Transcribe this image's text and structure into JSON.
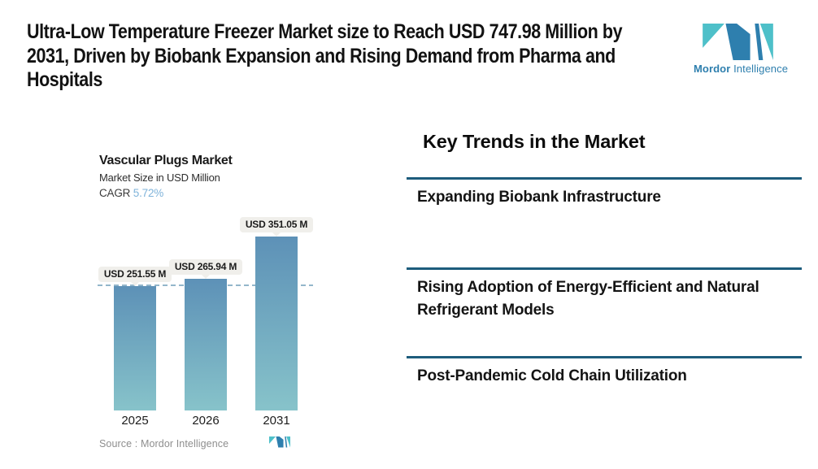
{
  "header": {
    "title": "Ultra-Low Temperature Freezer Market size to Reach USD 747.98 Million by 2031, Driven by Biobank Expansion and Rising Demand from Pharma and Hospitals",
    "logo": {
      "bold": "Mordor",
      "regular": "Intelligence"
    }
  },
  "chart": {
    "title": "Vascular Plugs Market",
    "subtitle": "Market Size in USD Million",
    "cagr_label": "CAGR",
    "cagr_value": "5.72%",
    "bars": [
      {
        "year": "2025",
        "label": "USD 251.55 M",
        "value": 251.55
      },
      {
        "year": "2026",
        "label": "USD 265.94 M",
        "value": 265.94
      },
      {
        "year": "2031",
        "label": "USD 351.05 M",
        "value": 351.05
      }
    ],
    "source_label": "Source :",
    "source_value": "Mordor Intelligence"
  },
  "chart_data": {
    "type": "bar",
    "categories": [
      "2025",
      "2026",
      "2031"
    ],
    "values": [
      251.55,
      265.94,
      351.05
    ],
    "value_labels": [
      "USD 251.55 M",
      "USD 265.94 M",
      "USD 351.05 M"
    ],
    "title": "Vascular Plugs Market",
    "subtitle": "Market Size in USD Million",
    "cagr": "5.72%",
    "xlabel": "",
    "ylabel": "Market Size in USD Million",
    "ylim": [
      0,
      360
    ],
    "grid": false,
    "legend": "none",
    "reference_line": {
      "style": "dashed",
      "at_value": 251.55
    },
    "source": "Source : Mordor Intelligence"
  },
  "trends": {
    "heading": "Key Trends in the Market",
    "items": [
      "Expanding Biobank Infrastructure",
      "Rising Adoption of Energy-Efficient and Natural Refrigerant Models",
      "Post-Pandemic Cold Chain Utilization"
    ]
  },
  "colors": {
    "bar_top": "#5d91b7",
    "bar_bottom": "#87c3ca",
    "divider": "#1d5c7c",
    "cagr_value": "#7fb3da",
    "dashed_line": "#93b6cb",
    "logo_teal": "#4ec0c9",
    "logo_blue": "#2e7fae"
  }
}
